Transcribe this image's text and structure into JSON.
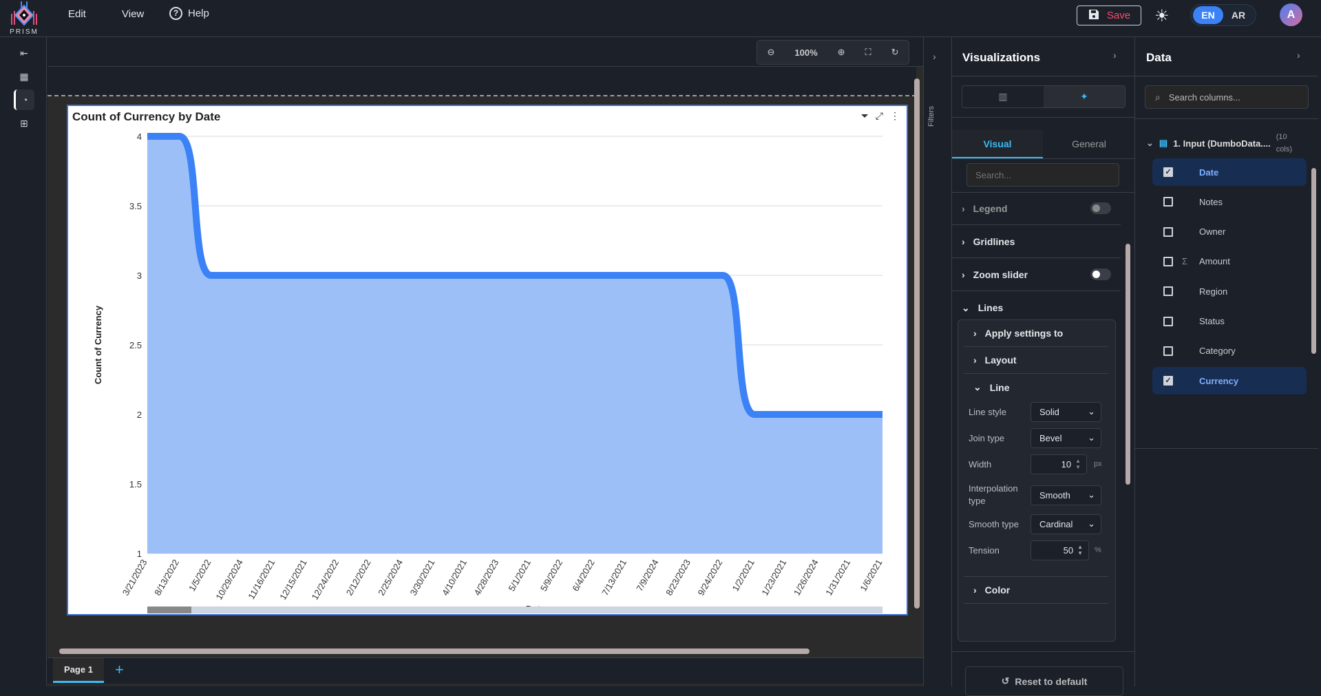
{
  "header": {
    "logo_text": "PRISM",
    "menu": [
      "Edit",
      "View",
      "Help"
    ],
    "save_label": "Save",
    "languages": [
      "EN",
      "AR"
    ],
    "active_language": "EN",
    "avatar_initial": "A"
  },
  "rail": {
    "icons": [
      "collapse-icon",
      "layout-icon",
      "chart-pie-icon",
      "hierarchy-icon"
    ]
  },
  "zoom_toolbar": {
    "zoom_level": "100%"
  },
  "filters": {
    "label": "Filters"
  },
  "page_tabs": {
    "tabs": [
      "Page 1"
    ]
  },
  "visualizations": {
    "title": "Visualizations",
    "tabs": [
      "Visual",
      "General"
    ],
    "active_tab": "Visual",
    "search_placeholder": "Search...",
    "sections": {
      "legend": "Legend",
      "gridlines": "Gridlines",
      "zoom_slider": "Zoom slider",
      "lines": "Lines"
    },
    "legend_on": false,
    "zoom_slider_on": false,
    "lines": {
      "apply": "Apply settings to",
      "layout": "Layout",
      "line": "Line",
      "color": "Color",
      "line_style_label": "Line style",
      "line_style": "Solid",
      "join_type_label": "Join type",
      "join_type": "Bevel",
      "width_label": "Width",
      "width": "10",
      "width_unit": "px",
      "interp_label": "Interpolation type",
      "interp": "Smooth",
      "smooth_label": "Smooth type",
      "smooth": "Cardinal",
      "tension_label": "Tension",
      "tension": "50",
      "tension_unit": "%"
    },
    "reset_label": "Reset to default"
  },
  "data": {
    "title": "Data",
    "search_placeholder": "Search columns...",
    "source": "1. Input (DumboData....",
    "source_count": "(10 cols)",
    "columns": [
      {
        "name": "Date",
        "checked": true
      },
      {
        "name": "Notes",
        "checked": false
      },
      {
        "name": "Owner",
        "checked": false
      },
      {
        "name": "Amount",
        "checked": false,
        "measure": true
      },
      {
        "name": "Region",
        "checked": false
      },
      {
        "name": "Status",
        "checked": false
      },
      {
        "name": "Category",
        "checked": false
      },
      {
        "name": "Currency",
        "checked": true
      }
    ]
  },
  "chart_data": {
    "type": "area",
    "title": "Count of Currency by Date",
    "xlabel": "Date",
    "ylabel": "Count of Currency",
    "categories": [
      "3/21/2023",
      "8/13/2022",
      "1/5/2022",
      "10/29/2024",
      "11/16/2021",
      "12/15/2021",
      "12/24/2022",
      "2/12/2022",
      "2/25/2024",
      "3/30/2021",
      "4/10/2021",
      "4/28/2023",
      "5/1/2021",
      "5/9/2022",
      "6/4/2022",
      "7/13/2021",
      "7/9/2024",
      "8/23/2023",
      "9/24/2022",
      "1/2/2021",
      "1/23/2021",
      "1/26/2024",
      "1/31/2021",
      "1/6/2021"
    ],
    "values": [
      4,
      4,
      3,
      3,
      3,
      3,
      3,
      3,
      3,
      3,
      3,
      3,
      3,
      3,
      3,
      3,
      3,
      3,
      3,
      2,
      2,
      2,
      2,
      2
    ],
    "ylim": [
      1,
      4
    ],
    "yticks": [
      "1",
      "1.5",
      "2",
      "2.5",
      "3",
      "3.5",
      "4"
    ],
    "grid": true,
    "legend": false,
    "line_color": "#3b82f6",
    "fill_color": "#9dbff8"
  }
}
